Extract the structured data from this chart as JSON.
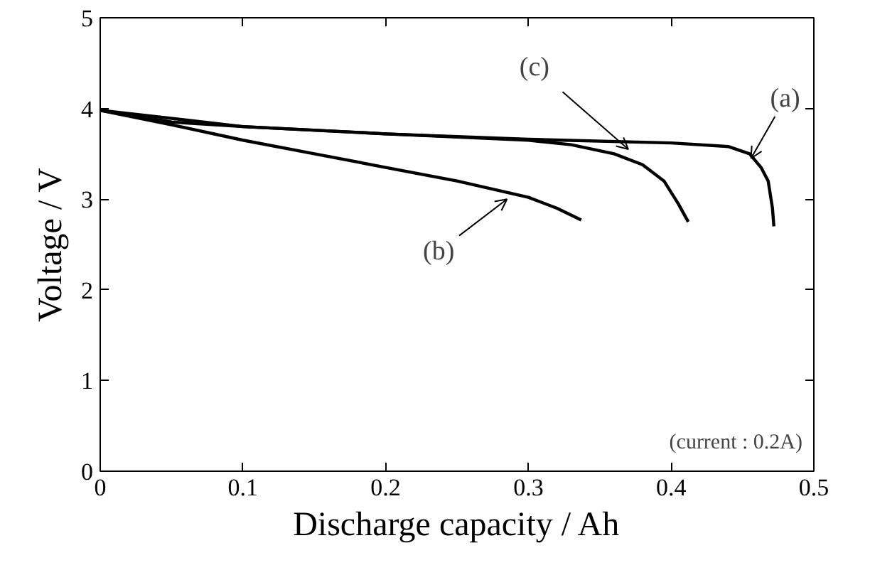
{
  "chart_data": {
    "type": "line",
    "xlabel": "Discharge capacity / Ah",
    "ylabel": "Voltage / V",
    "xlim": [
      0,
      0.5
    ],
    "ylim": [
      0,
      5
    ],
    "xticks": [
      0,
      0.1,
      0.2,
      0.3,
      0.4,
      0.5
    ],
    "yticks": [
      0,
      1,
      2,
      3,
      4,
      5
    ],
    "grid": false,
    "marker": "none",
    "line_style": "solid",
    "series": [
      {
        "color": "#000000",
        "x": [
          0,
          0.05,
          0.1,
          0.2,
          0.3,
          0.4,
          0.44,
          0.455,
          0.463,
          0.468,
          0.471,
          0.472
        ],
        "values": [
          3.98,
          3.85,
          3.8,
          3.72,
          3.66,
          3.62,
          3.58,
          3.5,
          3.35,
          3.2,
          2.9,
          2.7
        ]
      },
      {
        "color": "#000000",
        "x": [
          0,
          0.05,
          0.1,
          0.15,
          0.2,
          0.25,
          0.3,
          0.32,
          0.337
        ],
        "values": [
          3.98,
          3.82,
          3.65,
          3.5,
          3.35,
          3.2,
          3.02,
          2.9,
          2.77
        ]
      },
      {
        "color": "#000000",
        "x": [
          0,
          0.1,
          0.2,
          0.3,
          0.33,
          0.36,
          0.38,
          0.395,
          0.405,
          0.412
        ],
        "values": [
          3.98,
          3.8,
          3.72,
          3.65,
          3.6,
          3.5,
          3.38,
          3.2,
          2.95,
          2.75
        ]
      }
    ],
    "annotations": [
      {
        "text": "(a)",
        "x": 0.456,
        "y": 3.45
      },
      {
        "text": "(b)",
        "x": 0.285,
        "y": 3.0
      },
      {
        "text": "(c)",
        "x": 0.37,
        "y": 3.55
      },
      "(current : 0.2A)"
    ]
  }
}
